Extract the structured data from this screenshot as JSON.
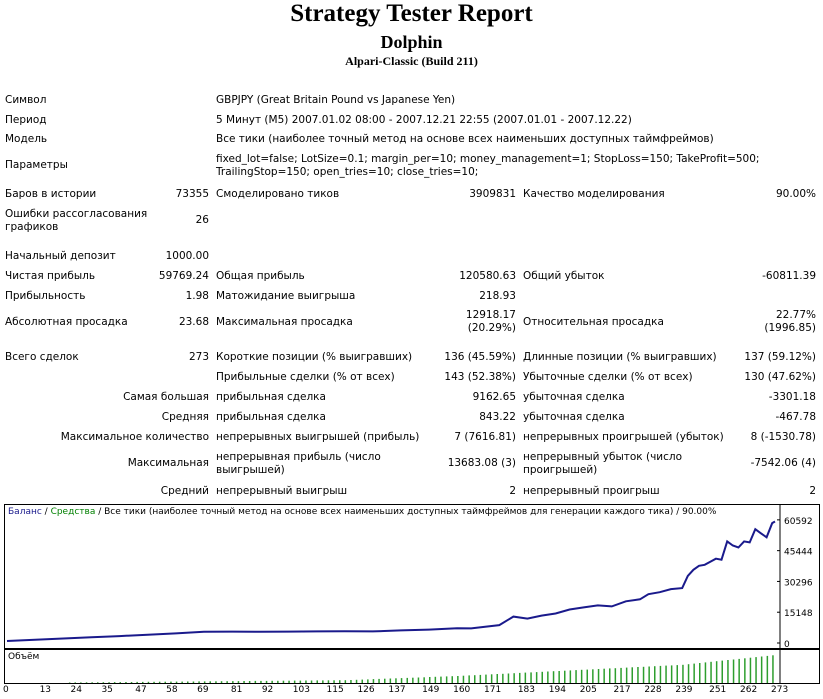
{
  "header": {
    "title": "Strategy Tester Report",
    "expert": "Dolphin",
    "server": "Alpari-Classic (Build 211)"
  },
  "info": {
    "symbol_label": "Символ",
    "symbol_value": "GBPJPY (Great Britain Pound vs Japanese Yen)",
    "period_label": "Период",
    "period_value": "5 Минут (M5) 2007.01.02 08:00 - 2007.12.21 22:55 (2007.01.01 - 2007.12.22)",
    "model_label": "Модель",
    "model_value": "Все тики (наиболее точный метод на основе всех наименьших доступных таймфреймов)",
    "params_label": "Параметры",
    "params_value": "fixed_lot=false; LotSize=0.1; margin_per=10; money_management=1; StopLoss=150; TakeProfit=500; TrailingStop=150; open_tries=10; close_tries=10;"
  },
  "stats": {
    "bars_label": "Баров в истории",
    "bars_value": "73355",
    "ticks_label": "Смоделировано тиков",
    "ticks_value": "3909831",
    "quality_label": "Качество моделирования",
    "quality_value": "90.00%",
    "errors_label": "Ошибки рассогласования графиков",
    "errors_value": "26",
    "deposit_label": "Начальный депозит",
    "deposit_value": "1000.00",
    "net_label": "Чистая прибыль",
    "net_value": "59769.24",
    "gross_profit_label": "Общая прибыль",
    "gross_profit_value": "120580.63",
    "gross_loss_label": "Общий убыток",
    "gross_loss_value": "-60811.39",
    "pf_label": "Прибыльность",
    "pf_value": "1.98",
    "expected_label": "Матожидание выигрыша",
    "expected_value": "218.93",
    "abs_dd_label": "Абсолютная просадка",
    "abs_dd_value": "23.68",
    "max_dd_label": "Максимальная просадка",
    "max_dd_value1": "12918.17",
    "max_dd_value2": "(20.29%)",
    "rel_dd_label": "Относительная просадка",
    "rel_dd_value1": "22.77%",
    "rel_dd_value2": "(1996.85)",
    "trades_label": "Всего сделок",
    "trades_value": "273",
    "short_label": "Короткие позиции (% выигравших)",
    "short_value": "136 (45.59%)",
    "long_label": "Длинные позиции (% выигравших)",
    "long_value": "137 (59.12%)",
    "profit_trades_label": "Прибыльные сделки (% от всех)",
    "profit_trades_value": "143 (52.38%)",
    "loss_trades_label": "Убыточные сделки (% от всех)",
    "loss_trades_value": "130 (47.62%)",
    "largest_label": "Самая большая",
    "largest_profit_label": "прибыльная сделка",
    "largest_profit_value": "9162.65",
    "largest_loss_label": "убыточная сделка",
    "largest_loss_value": "-3301.18",
    "average_label": "Средняя",
    "average_profit_label": "прибыльная сделка",
    "average_profit_value": "843.22",
    "average_loss_label": "убыточная сделка",
    "average_loss_value": "-467.78",
    "maxcount_label": "Максимальное количество",
    "maxcount_wins_label": "непрерывных выигрышей (прибыль)",
    "maxcount_wins_value": "7 (7616.81)",
    "maxcount_losses_label": "непрерывных проигрышей (убыток)",
    "maxcount_losses_value": "8 (-1530.78)",
    "maximal_label": "Максимальная",
    "maximal_profit_label": "непрерывная прибыль (число выигрышей)",
    "maximal_profit_value": "13683.08 (3)",
    "maximal_loss_label": "непрерывный убыток (число проигрышей)",
    "maximal_loss_value": "-7542.06 (4)",
    "avgcons_label": "Средний",
    "avgcons_wins_label": "непрерывный выигрыш",
    "avgcons_wins_value": "2",
    "avgcons_losses_label": "непрерывный проигрыш",
    "avgcons_losses_value": "2"
  },
  "chart_data": {
    "type": "line",
    "legend_balance": "Баланс",
    "legend_sep": " / ",
    "legend_equity": "Средства",
    "legend_rest": " / Все тики (наиболее точный метод на основе всех наименьших доступных таймфреймов для генерации каждого тика) / 90.00%",
    "volume_label": "Объём",
    "colors": {
      "balance": "#1a1a8c",
      "equity": "#008000",
      "volume": "#2e9e2e"
    },
    "ylim": [
      0,
      62000
    ],
    "y_ticks": [
      "60592",
      "45444",
      "30296",
      "15148",
      "0"
    ],
    "x_ticks": [
      "0",
      "13",
      "24",
      "35",
      "47",
      "58",
      "69",
      "81",
      "92",
      "103",
      "115",
      "126",
      "137",
      "149",
      "160",
      "171",
      "183",
      "194",
      "205",
      "217",
      "228",
      "239",
      "251",
      "262",
      "273"
    ],
    "xlim": [
      0,
      273
    ],
    "balance": [
      [
        0,
        1000
      ],
      [
        10,
        1600
      ],
      [
        20,
        2200
      ],
      [
        30,
        2800
      ],
      [
        40,
        3400
      ],
      [
        50,
        4100
      ],
      [
        60,
        4700
      ],
      [
        70,
        5500
      ],
      [
        80,
        5600
      ],
      [
        90,
        5500
      ],
      [
        100,
        5600
      ],
      [
        110,
        5700
      ],
      [
        120,
        5800
      ],
      [
        130,
        5700
      ],
      [
        140,
        6200
      ],
      [
        150,
        6600
      ],
      [
        160,
        7300
      ],
      [
        165,
        7200
      ],
      [
        170,
        8000
      ],
      [
        175,
        8800
      ],
      [
        180,
        13000
      ],
      [
        185,
        12000
      ],
      [
        190,
        13500
      ],
      [
        195,
        14500
      ],
      [
        200,
        16500
      ],
      [
        205,
        17500
      ],
      [
        210,
        18500
      ],
      [
        215,
        18000
      ],
      [
        220,
        20500
      ],
      [
        225,
        21500
      ],
      [
        228,
        24000
      ],
      [
        232,
        25000
      ],
      [
        236,
        26500
      ],
      [
        240,
        27000
      ],
      [
        242,
        33000
      ],
      [
        244,
        36000
      ],
      [
        246,
        38000
      ],
      [
        248,
        38500
      ],
      [
        250,
        40000
      ],
      [
        252,
        41500
      ],
      [
        254,
        41000
      ],
      [
        256,
        50000
      ],
      [
        258,
        48000
      ],
      [
        260,
        47000
      ],
      [
        262,
        50000
      ],
      [
        264,
        49500
      ],
      [
        266,
        56000
      ],
      [
        268,
        54000
      ],
      [
        270,
        52000
      ],
      [
        272,
        59000
      ],
      [
        273,
        59769
      ]
    ],
    "volume_profile": [
      [
        0,
        0
      ],
      [
        120,
        0.1
      ],
      [
        160,
        0.25
      ],
      [
        200,
        0.45
      ],
      [
        240,
        0.65
      ],
      [
        273,
        1.0
      ]
    ]
  }
}
